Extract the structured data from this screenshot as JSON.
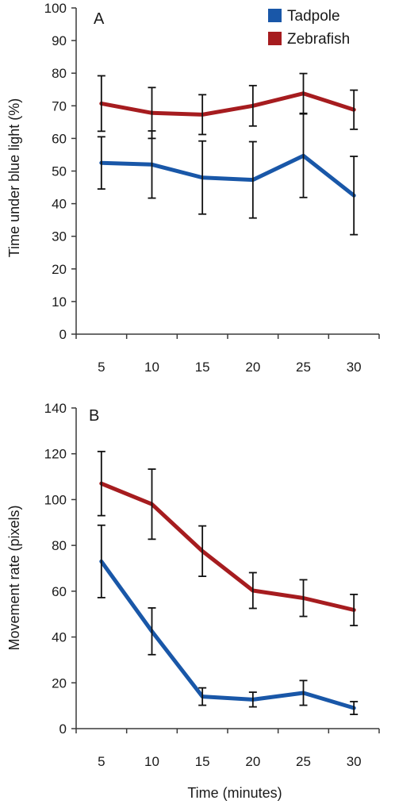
{
  "colors": {
    "tadpole": "#1957a8",
    "zebrafish": "#a61c1f",
    "axis": "#3a3a3a",
    "errorbar": "#111111"
  },
  "chart_data": [
    {
      "type": "line",
      "panel_label": "A",
      "x": [
        5,
        10,
        15,
        20,
        25,
        30
      ],
      "xlabel": "",
      "ylabel": "Time under blue light (%)",
      "ylim": [
        0,
        100
      ],
      "yticks": [
        0,
        10,
        20,
        30,
        40,
        50,
        60,
        70,
        80,
        90,
        100
      ],
      "grid": false,
      "legend": "top-right",
      "series": [
        {
          "name": "Tadpole",
          "color_key": "tadpole",
          "values": [
            52.5,
            52.0,
            48.0,
            47.3,
            54.7,
            42.5
          ],
          "errors": [
            8.0,
            10.3,
            11.2,
            11.7,
            12.8,
            12.0
          ]
        },
        {
          "name": "Zebrafish",
          "color_key": "zebrafish",
          "values": [
            70.7,
            67.8,
            67.3,
            70.0,
            73.8,
            68.8
          ],
          "errors": [
            8.5,
            7.8,
            6.1,
            6.2,
            6.1,
            6.0
          ]
        }
      ]
    },
    {
      "type": "line",
      "panel_label": "B",
      "x": [
        5,
        10,
        15,
        20,
        25,
        30
      ],
      "xlabel": "Time (minutes)",
      "ylabel": "Movement rate (pixels)",
      "ylim": [
        0,
        140
      ],
      "yticks": [
        0,
        20,
        40,
        60,
        80,
        100,
        120,
        140
      ],
      "grid": false,
      "series": [
        {
          "name": "Tadpole",
          "color_key": "tadpole",
          "values": [
            73.0,
            42.5,
            14.0,
            12.7,
            15.6,
            9.0
          ],
          "errors": [
            15.8,
            10.2,
            3.8,
            3.2,
            5.4,
            2.8
          ]
        },
        {
          "name": "Zebrafish",
          "color_key": "zebrafish",
          "values": [
            107.0,
            98.0,
            77.5,
            60.3,
            57.0,
            51.8
          ],
          "errors": [
            14.0,
            15.3,
            11.0,
            7.8,
            8.0,
            6.8
          ]
        }
      ]
    }
  ]
}
